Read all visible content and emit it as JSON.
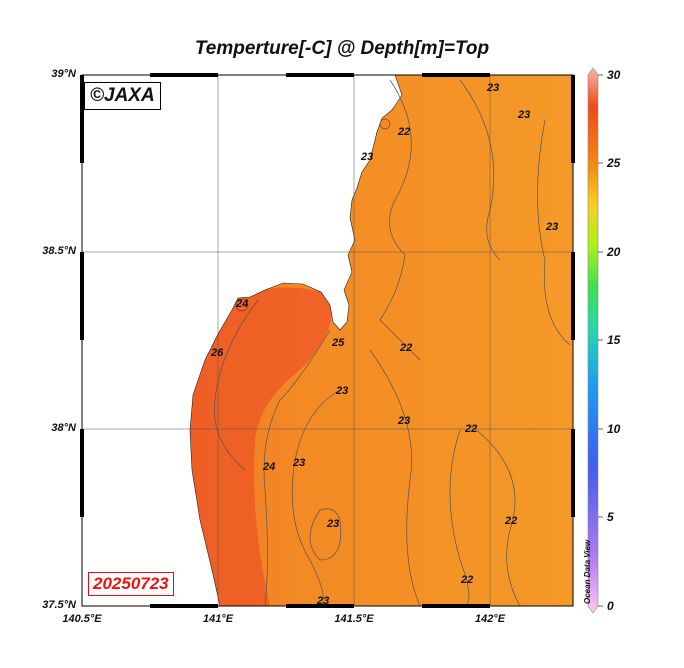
{
  "title": "Temperture[-C] @ Depth[m]=Top",
  "copyright": "©JAXA",
  "date": "20250723",
  "watermark": "Ocean Data View",
  "lat_ticks": [
    "39°N",
    "38.5°N",
    "38°N",
    "37.5°N"
  ],
  "lon_ticks": [
    "140.5°E",
    "141°E",
    "141.5°E",
    "142°E"
  ],
  "colorbar": {
    "labels": [
      "30",
      "25",
      "20",
      "15",
      "10",
      "5",
      "0"
    ],
    "min": 0,
    "max": 30,
    "colors": [
      "#ffc8f0",
      "#b07cf0",
      "#3f5cf0",
      "#1a9ff0",
      "#27d6b0",
      "#3fe050",
      "#b4f01a",
      "#f5d020",
      "#f58a10",
      "#f04a18",
      "#f7b4a8"
    ]
  },
  "contour_labels": [
    {
      "text": "23"
    },
    {
      "text": "23"
    },
    {
      "text": "22"
    },
    {
      "text": "23"
    },
    {
      "text": "23"
    },
    {
      "text": "24"
    },
    {
      "text": "26"
    },
    {
      "text": "25"
    },
    {
      "text": "22"
    },
    {
      "text": "23"
    },
    {
      "text": "23"
    },
    {
      "text": "22"
    },
    {
      "text": "24"
    },
    {
      "text": "23"
    },
    {
      "text": "23"
    },
    {
      "text": "22"
    },
    {
      "text": "22"
    },
    {
      "text": "23"
    }
  ],
  "colors": {
    "ocean": "#f59a28",
    "warm": "#f06428",
    "land": "#ffffff"
  }
}
